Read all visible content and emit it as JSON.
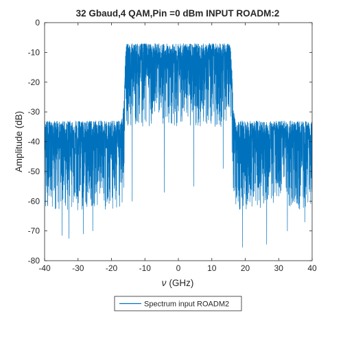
{
  "chart_data": {
    "type": "line",
    "title": "32 Gbaud,4 QAM,Pin =0 dBm INPUT ROADM:2",
    "xlabel_symbol": "ν",
    "xlabel_unit": "(GHz)",
    "ylabel": "Amplitude (dB)",
    "xlim": [
      -40,
      40
    ],
    "ylim": [
      -80,
      0
    ],
    "xticks": [
      "-40",
      "-30",
      "-20",
      "-10",
      "0",
      "10",
      "20",
      "30",
      "40"
    ],
    "yticks": [
      "0",
      "-10",
      "-20",
      "-30",
      "-40",
      "-50",
      "-60",
      "-70",
      "-80"
    ],
    "grid": false,
    "legend_position": "bottom-center",
    "series": [
      {
        "name": "Spectrum input ROADM2",
        "color": "#0072BD",
        "envelope": {
          "x": [
            -40,
            -17,
            -16.3,
            -15.9,
            -15.5,
            15.5,
            15.9,
            16.3,
            17,
            40
          ],
          "upper": [
            -33,
            -33,
            -25,
            -12,
            -7,
            -7,
            -12,
            -25,
            -33,
            -33
          ],
          "median": [
            -42,
            -42,
            -35,
            -22,
            -15,
            -15,
            -22,
            -35,
            -42,
            -42
          ],
          "lower": [
            -63,
            -63,
            -55,
            -42,
            -35,
            -35,
            -42,
            -55,
            -63,
            -63
          ]
        },
        "deep_dips": [
          {
            "x": -34.8,
            "y": -71.5
          },
          {
            "x": -32.7,
            "y": -72.5
          },
          {
            "x": -28.4,
            "y": -71
          },
          {
            "x": -25.6,
            "y": -70
          },
          {
            "x": -13.8,
            "y": -60
          },
          {
            "x": -4.2,
            "y": -57
          },
          {
            "x": 4.6,
            "y": -55
          },
          {
            "x": 13.4,
            "y": -49
          },
          {
            "x": 19.2,
            "y": -75.5
          },
          {
            "x": 26.4,
            "y": -74.5
          },
          {
            "x": 32.6,
            "y": -70
          },
          {
            "x": 37.8,
            "y": -67
          }
        ]
      }
    ]
  }
}
